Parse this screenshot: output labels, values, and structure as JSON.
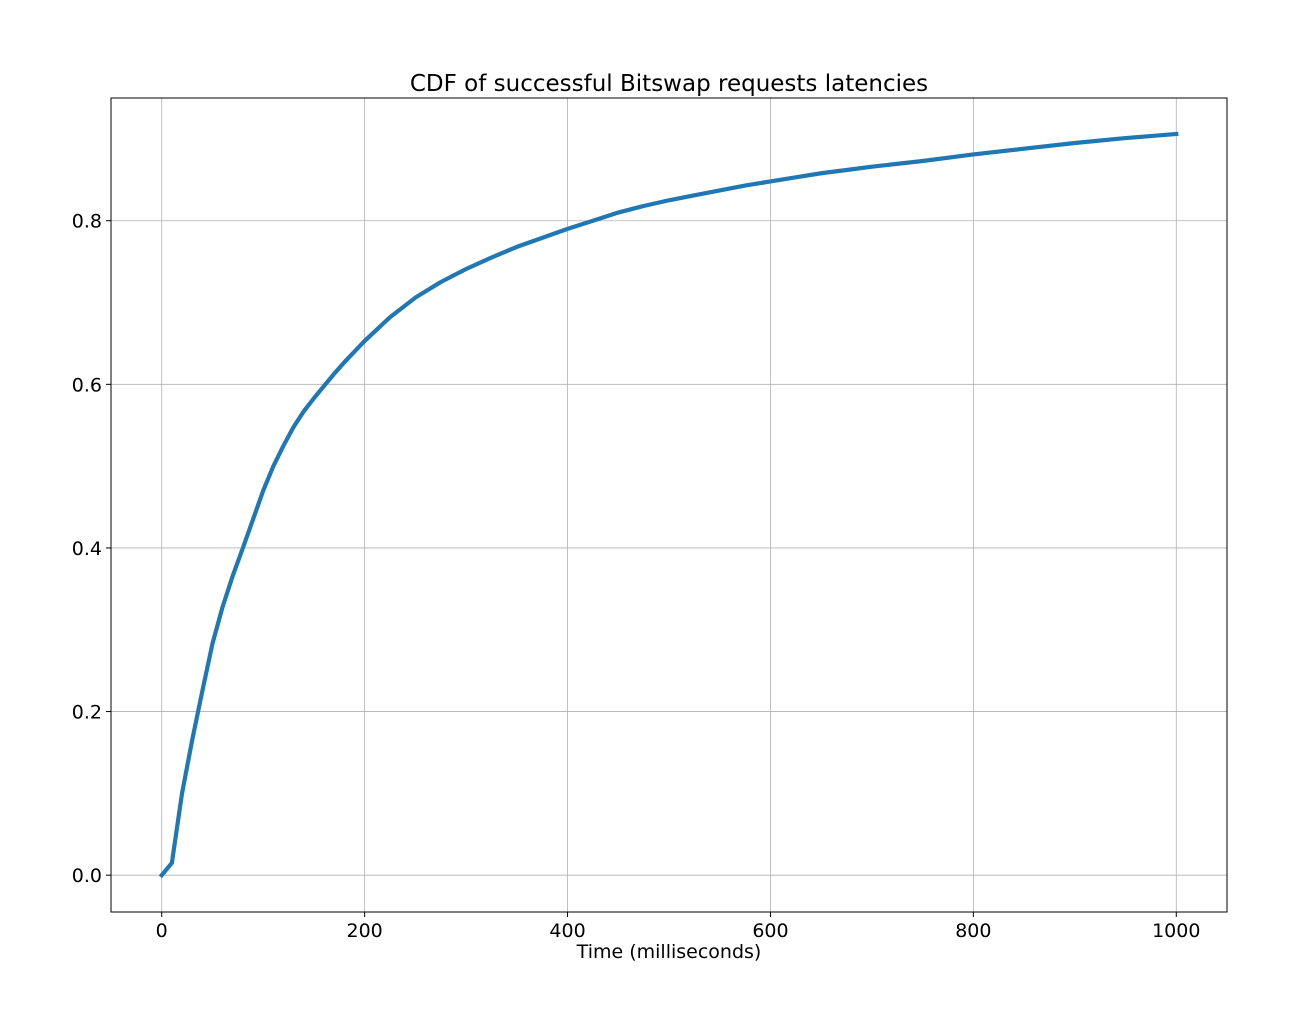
{
  "chart_data": {
    "type": "line",
    "title": "CDF of successful Bitswap requests latencies",
    "xlabel": "Time (milliseconds)",
    "ylabel": "",
    "xlim": [
      -50,
      1050
    ],
    "ylim": [
      -0.045,
      0.95
    ],
    "xticks": [
      0,
      200,
      400,
      600,
      800,
      1000
    ],
    "xtick_labels": [
      "0",
      "200",
      "400",
      "600",
      "800",
      "1000"
    ],
    "yticks": [
      0.0,
      0.2,
      0.4,
      0.6,
      0.8
    ],
    "ytick_labels": [
      "0.0",
      "0.2",
      "0.4",
      "0.6",
      "0.8"
    ],
    "grid": true,
    "line_color": "#1f77b4",
    "series": [
      {
        "x": [
          0,
          10,
          20,
          30,
          40,
          50,
          60,
          70,
          80,
          90,
          100,
          110,
          120,
          130,
          140,
          150,
          160,
          170,
          180,
          190,
          200,
          225,
          250,
          275,
          300,
          325,
          350,
          375,
          400,
          425,
          450,
          475,
          500,
          525,
          550,
          575,
          600,
          625,
          650,
          675,
          700,
          750,
          800,
          850,
          900,
          950,
          1000
        ],
        "y": [
          0.0,
          0.015,
          0.1,
          0.165,
          0.225,
          0.283,
          0.328,
          0.366,
          0.4,
          0.435,
          0.47,
          0.5,
          0.525,
          0.548,
          0.567,
          0.583,
          0.598,
          0.613,
          0.627,
          0.64,
          0.653,
          0.682,
          0.706,
          0.725,
          0.741,
          0.755,
          0.768,
          0.779,
          0.79,
          0.8,
          0.81,
          0.818,
          0.825,
          0.831,
          0.837,
          0.843,
          0.848,
          0.853,
          0.858,
          0.862,
          0.866,
          0.873,
          0.881,
          0.888,
          0.895,
          0.901,
          0.906
        ]
      }
    ]
  }
}
